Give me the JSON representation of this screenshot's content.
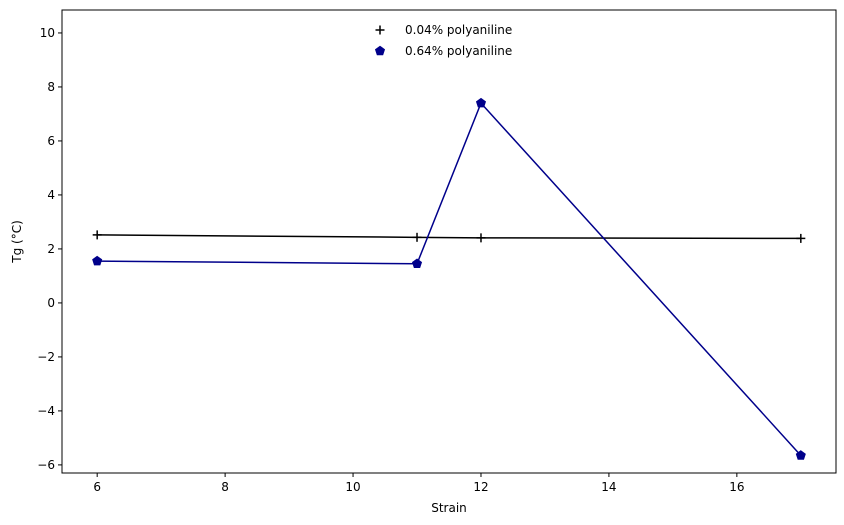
{
  "chart_data": {
    "type": "line",
    "xlabel": "Strain",
    "ylabel": "Tg (°C)",
    "xlim": [
      5.45,
      17.55
    ],
    "ylim": [
      -6.3,
      10.85
    ],
    "xticks": [
      6,
      8,
      10,
      12,
      14,
      16
    ],
    "xtick_labels": [
      "6",
      "8",
      "10",
      "12",
      "14",
      "16"
    ],
    "yticks": [
      -6,
      -4,
      -2,
      0,
      2,
      4,
      6,
      8,
      10
    ],
    "ytick_labels": [
      "−6",
      "−4",
      "−2",
      "0",
      "2",
      "4",
      "6",
      "8",
      "10"
    ],
    "grid": false,
    "legend_position": "top-center",
    "series": [
      {
        "name": "0.04% polyaniline",
        "marker": "plus",
        "color": "#000000",
        "x": [
          6,
          11,
          12,
          17
        ],
        "y": [
          2.52,
          2.43,
          2.41,
          2.39
        ]
      },
      {
        "name": "0.64% polyaniline",
        "marker": "pentagon",
        "color": "#00008b",
        "x": [
          6,
          11,
          12,
          17
        ],
        "y": [
          1.55,
          1.45,
          7.4,
          -5.65
        ]
      }
    ]
  }
}
